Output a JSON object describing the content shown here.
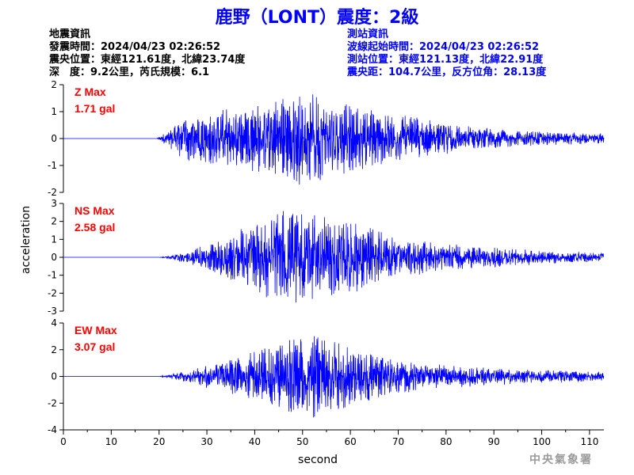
{
  "title": "鹿野（LONT）震度：2級",
  "quake_info": {
    "heading": "地震資訊",
    "origin_time": "發震時間：2024/04/23 02:26:52",
    "epicenter": "震央位置：東經121.61度，北緯23.74度",
    "depth_magnitude": "深　度：9.2公里，芮氏規模：6.1"
  },
  "station_info": {
    "heading": "測站資訊",
    "wave_start": "波線起始時間：2024/04/23 02:26:52",
    "location": "測站位置：東經121.13度，北緯22.91度",
    "distance": "震央距：104.7公里，反方位角：28.13度"
  },
  "agency": "中央氣象署",
  "colors": {
    "title": "#0000ff",
    "trace": "#0000ff",
    "max_label": "#ff0000",
    "info_right": "#0000ff",
    "agency": "#9a9a9a"
  },
  "chart_data": [
    {
      "type": "line",
      "component": "Z",
      "label_line1": "Z Max",
      "label_line2": "1.71 gal",
      "ylim": [
        -2,
        2
      ],
      "yticks": [
        "2",
        "1",
        "0",
        "-1",
        "-2"
      ],
      "xlim": [
        0,
        113
      ],
      "pga": 1.71,
      "onset_s": 19.5,
      "envelope_s": [
        0,
        19.5,
        22,
        25,
        30,
        35,
        40,
        45,
        50,
        55,
        60,
        65,
        70,
        80,
        90,
        100,
        113
      ],
      "envelope_amp": [
        0,
        0,
        0.25,
        0.7,
        0.85,
        0.95,
        1.05,
        1.25,
        1.5,
        1.25,
        1.05,
        0.95,
        0.75,
        0.5,
        0.3,
        0.22,
        0.16
      ]
    },
    {
      "type": "line",
      "component": "NS",
      "label_line1": "NS Max",
      "label_line2": "2.58 gal",
      "ylim": [
        -3,
        3
      ],
      "yticks": [
        "3",
        "2",
        "1",
        "0",
        "-1",
        "-2",
        "-3"
      ],
      "xlim": [
        0,
        113
      ],
      "pga": 2.58,
      "onset_s": 20,
      "envelope_s": [
        0,
        20,
        23,
        27,
        30,
        35,
        40,
        45,
        50,
        55,
        60,
        65,
        70,
        80,
        90,
        100,
        113
      ],
      "envelope_amp": [
        0,
        0,
        0.1,
        0.35,
        0.6,
        1.0,
        1.6,
        2.1,
        2.0,
        1.8,
        1.6,
        1.3,
        0.9,
        0.6,
        0.45,
        0.3,
        0.2
      ]
    },
    {
      "type": "line",
      "component": "EW",
      "label_line1": "EW Max",
      "label_line2": "3.07 gal",
      "ylim": [
        -4,
        4
      ],
      "yticks": [
        "4",
        "2",
        "0",
        "-2",
        "-4"
      ],
      "xlim": [
        0,
        113
      ],
      "pga": 3.07,
      "onset_s": 20,
      "envelope_s": [
        0,
        20,
        23,
        27,
        30,
        35,
        40,
        45,
        50,
        55,
        60,
        65,
        70,
        80,
        90,
        100,
        113
      ],
      "envelope_amp": [
        0,
        0,
        0.15,
        0.4,
        0.6,
        0.9,
        1.3,
        2.0,
        2.3,
        2.1,
        1.6,
        1.2,
        0.9,
        0.6,
        0.45,
        0.35,
        0.25
      ]
    }
  ],
  "x_axis": {
    "label": "second",
    "ticks": [
      "0",
      "10",
      "20",
      "30",
      "40",
      "50",
      "60",
      "70",
      "80",
      "90",
      "100",
      "110"
    ],
    "tick_values": [
      0,
      10,
      20,
      30,
      40,
      50,
      60,
      70,
      80,
      90,
      100,
      110
    ]
  },
  "y_axis": {
    "label": "acceleration"
  }
}
